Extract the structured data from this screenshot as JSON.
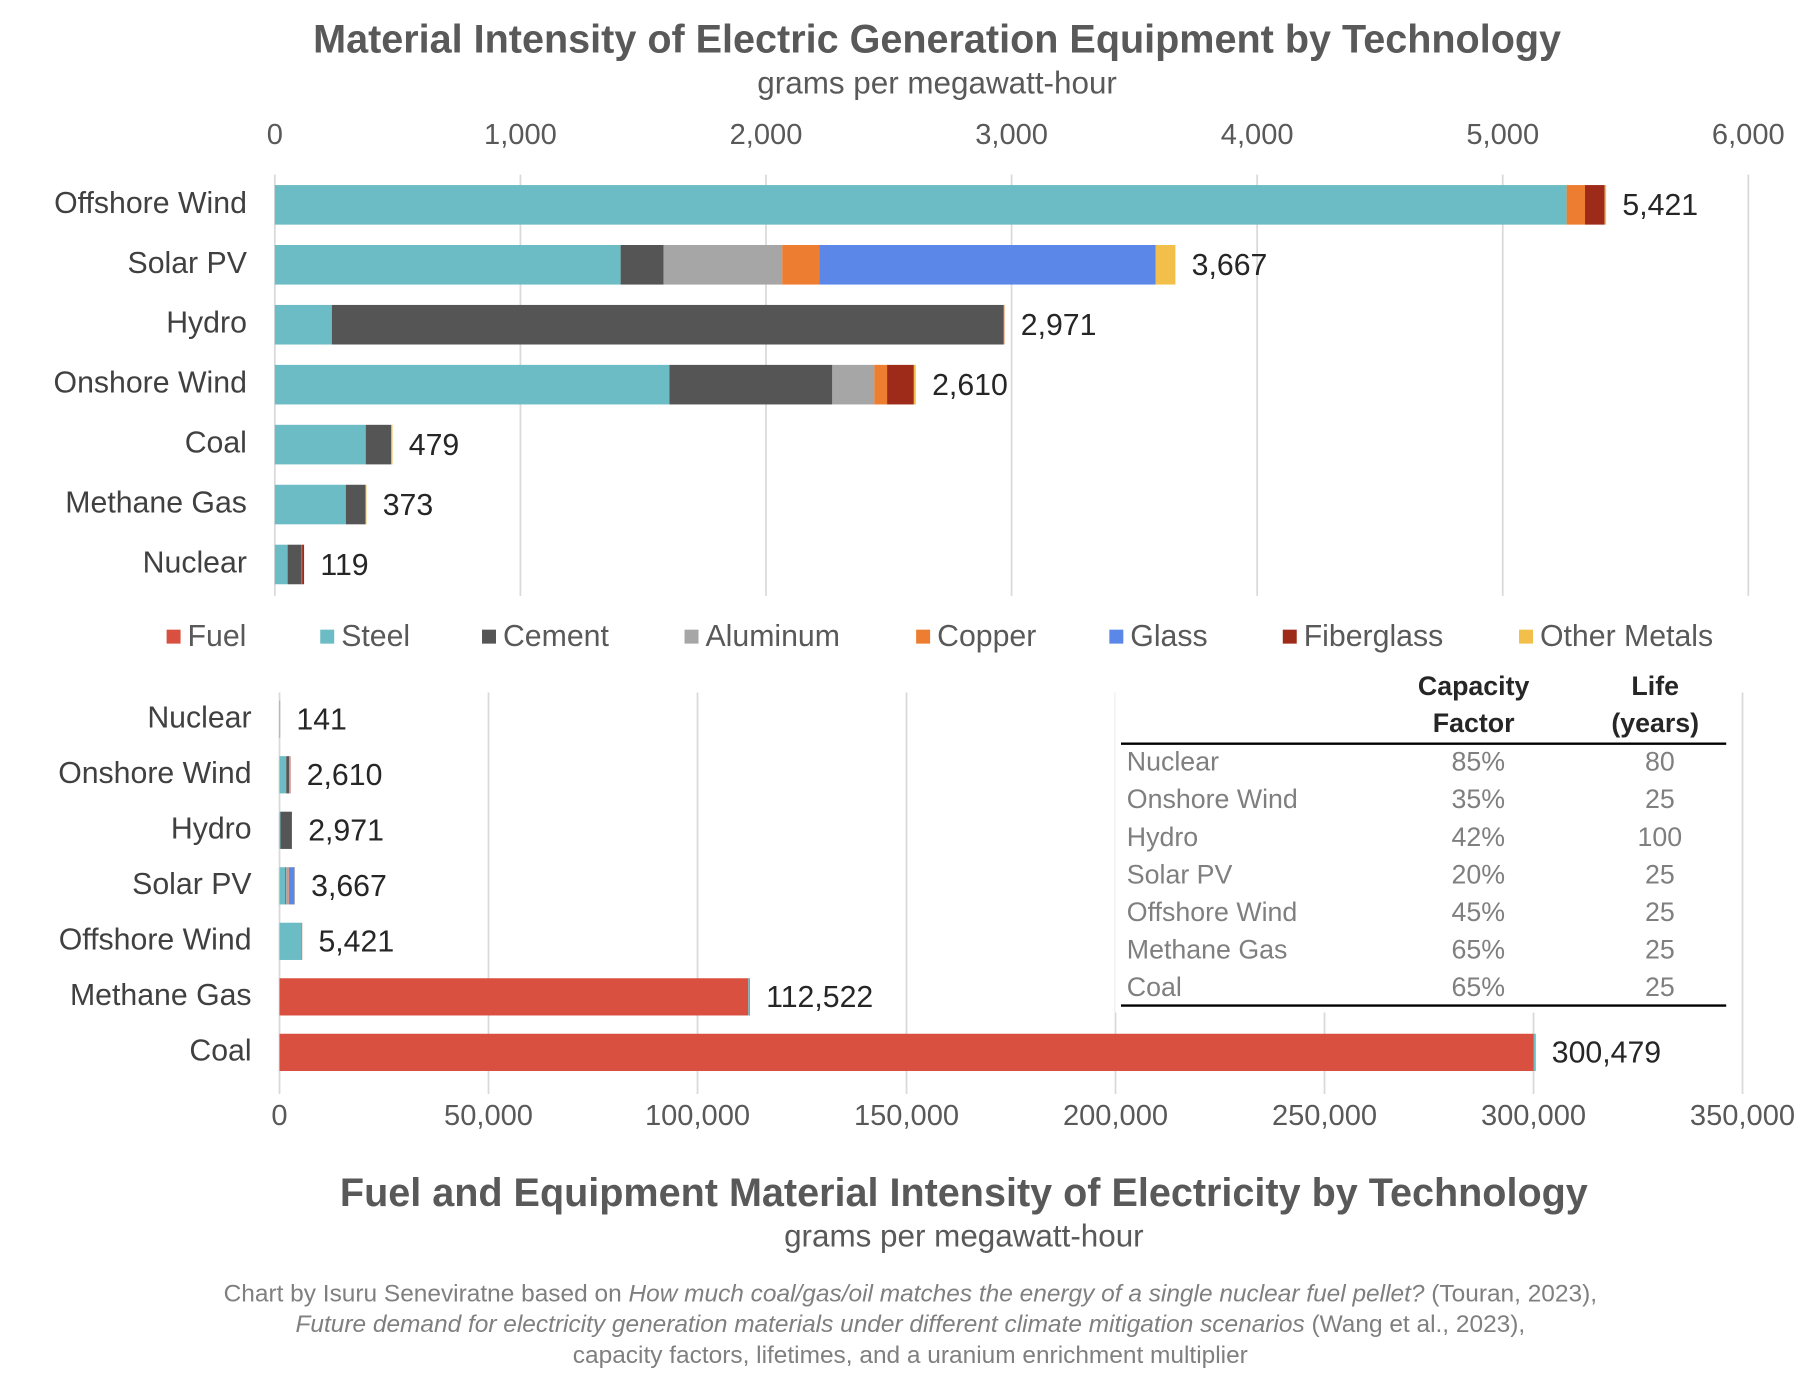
{
  "chart_data": [
    {
      "type": "stacked-bar-horizontal",
      "title": "Material Intensity of Electric Generation Equipment by Technology",
      "subtitle": "grams per megawatt-hour",
      "categories": [
        "Offshore Wind",
        "Solar PV",
        "Hydro",
        "Onshore Wind",
        "Coal",
        "Methane Gas",
        "Nuclear"
      ],
      "series": [
        {
          "name": "Steel",
          "color": "#6bbcc4",
          "values": [
            5260,
            1408,
            232,
            1607,
            370,
            289,
            52
          ]
        },
        {
          "name": "Cement",
          "color": "#555555",
          "values": [
            0,
            175,
            2735,
            663,
            104,
            80,
            57
          ]
        },
        {
          "name": "Aluminum",
          "color": "#a6a6a6",
          "values": [
            0,
            483,
            0,
            171,
            0,
            0,
            0
          ]
        },
        {
          "name": "Copper",
          "color": "#ed7d31",
          "values": [
            75,
            152,
            4,
            52,
            0,
            0,
            2
          ]
        },
        {
          "name": "Glass",
          "color": "#5b87e8",
          "values": [
            0,
            1369,
            0,
            0,
            0,
            0,
            0
          ]
        },
        {
          "name": "Fiberglass",
          "color": "#9e2a1a",
          "values": [
            80,
            0,
            0,
            109,
            0,
            0,
            8
          ]
        },
        {
          "name": "Other Metals",
          "color": "#f2c04a",
          "values": [
            6,
            80,
            0,
            8,
            5,
            4,
            0
          ]
        }
      ],
      "totals": [
        5421,
        3667,
        2971,
        2610,
        479,
        373,
        119
      ],
      "total_labels": [
        "5,421",
        "3,667",
        "2,971",
        "2,610",
        "479",
        "373",
        "119"
      ],
      "xlim": [
        0,
        6000
      ],
      "xticks": [
        0,
        {
          "value": 1000,
          "label": "1,000"
        },
        {
          "value": 2000,
          "label": "2,000"
        },
        {
          "value": 3000,
          "label": "3,000"
        },
        {
          "value": 4000,
          "label": "4,000"
        },
        {
          "value": 5000,
          "label": "5,000"
        },
        {
          "value": 6000,
          "label": "6,000"
        }
      ],
      "grid": true
    },
    {
      "type": "stacked-bar-horizontal",
      "title": "Fuel and Equipment Material Intensity of Electricity by Technology",
      "subtitle": "grams per megawatt-hour",
      "categories": [
        "Nuclear",
        "Onshore Wind",
        "Hydro",
        "Solar PV",
        "Offshore Wind",
        "Methane Gas",
        "Coal"
      ],
      "series": [
        {
          "name": "Fuel",
          "color": "#d95040",
          "values": [
            22,
            0,
            0,
            0,
            0,
            112149,
            300000
          ]
        },
        {
          "name": "Steel",
          "color": "#6bbcc4",
          "values": [
            52,
            1607,
            232,
            1408,
            5260,
            289,
            370
          ]
        },
        {
          "name": "Cement",
          "color": "#555555",
          "values": [
            57,
            663,
            2735,
            175,
            0,
            80,
            104
          ]
        },
        {
          "name": "Aluminum",
          "color": "#a6a6a6",
          "values": [
            0,
            171,
            0,
            483,
            0,
            0,
            0
          ]
        },
        {
          "name": "Copper",
          "color": "#ed7d31",
          "values": [
            2,
            52,
            4,
            152,
            75,
            0,
            0
          ]
        },
        {
          "name": "Glass",
          "color": "#5b87e8",
          "values": [
            0,
            0,
            0,
            1369,
            0,
            0,
            0
          ]
        },
        {
          "name": "Fiberglass",
          "color": "#9e2a1a",
          "values": [
            8,
            109,
            0,
            0,
            80,
            0,
            0
          ]
        },
        {
          "name": "Other Metals",
          "color": "#f2c04a",
          "values": [
            0,
            8,
            0,
            80,
            6,
            4,
            5
          ]
        }
      ],
      "totals": [
        141,
        2610,
        2971,
        3667,
        5421,
        112522,
        300479
      ],
      "total_labels": [
        "141",
        "2,610",
        "2,971",
        "3,667",
        "5,421",
        "112,522",
        "300,479"
      ],
      "xlim": [
        0,
        350000
      ],
      "xticks": [
        0,
        {
          "value": 50000,
          "label": "50,000"
        },
        {
          "value": 100000,
          "label": "100,000"
        },
        {
          "value": 150000,
          "label": "150,000"
        },
        {
          "value": 200000,
          "label": "200,000"
        },
        {
          "value": 250000,
          "label": "250,000"
        },
        {
          "value": 300000,
          "label": "300,000"
        },
        {
          "value": 350000,
          "label": "350,000"
        }
      ],
      "grid": true
    }
  ],
  "table": {
    "columns": [
      [
        "Capacity",
        "Factor"
      ],
      [
        "Life",
        "(years)"
      ]
    ],
    "rows": [
      [
        "Nuclear",
        "85%",
        "80"
      ],
      [
        "Onshore Wind",
        "35%",
        "25"
      ],
      [
        "Hydro",
        "42%",
        "100"
      ],
      [
        "Solar PV",
        "20%",
        "25"
      ],
      [
        "Offshore Wind",
        "45%",
        "25"
      ],
      [
        "Methane Gas",
        "65%",
        "25"
      ],
      [
        "Coal",
        "65%",
        "25"
      ]
    ]
  },
  "caption": [
    [
      {
        "text": "Chart by Isuru Seneviratne based on ",
        "italic": false
      },
      {
        "text": "How much coal/gas/oil matches the energy of a single nuclear fuel pellet?",
        "italic": true
      },
      {
        "text": " (Touran, 2023),",
        "italic": false
      }
    ],
    [
      {
        "text": "Future demand for electricity generation materials under different climate mitigation scenarios",
        "italic": true
      },
      {
        "text": " (Wang et al., 2023),",
        "italic": false
      }
    ],
    [
      {
        "text": "capacity factors, lifetimes, and a uranium enrichment multiplier",
        "italic": false
      }
    ]
  ]
}
